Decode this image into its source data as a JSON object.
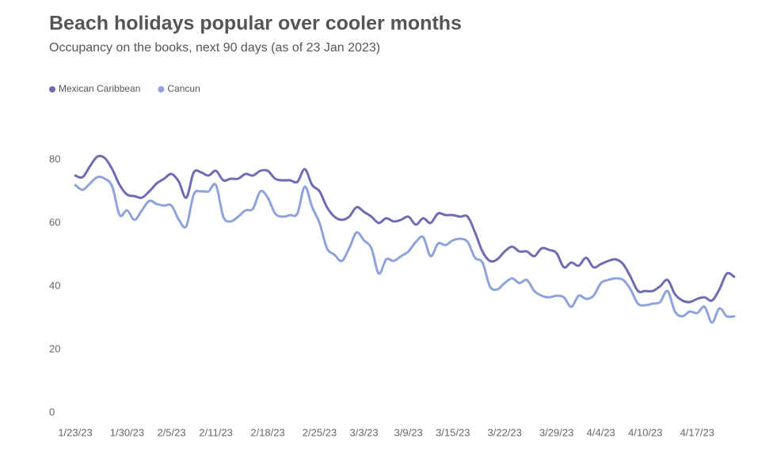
{
  "chart_data": {
    "type": "line",
    "title": "Beach holidays popular over cooler months",
    "subtitle": "Occupancy on the books, next 90 days (as of 23 Jan 2023)",
    "x": [
      "1/23/23",
      "1/24/23",
      "1/25/23",
      "1/26/23",
      "1/27/23",
      "1/28/23",
      "1/29/23",
      "1/30/23",
      "1/31/23",
      "2/1/23",
      "2/2/23",
      "2/3/23",
      "2/4/23",
      "2/5/23",
      "2/6/23",
      "2/7/23",
      "2/8/23",
      "2/9/23",
      "2/10/23",
      "2/11/23",
      "2/12/23",
      "2/13/23",
      "2/14/23",
      "2/15/23",
      "2/16/23",
      "2/17/23",
      "2/18/23",
      "2/19/23",
      "2/20/23",
      "2/21/23",
      "2/22/23",
      "2/23/23",
      "2/24/23",
      "2/25/23",
      "2/26/23",
      "2/27/23",
      "2/28/23",
      "3/1/23",
      "3/2/23",
      "3/3/23",
      "3/4/23",
      "3/5/23",
      "3/6/23",
      "3/7/23",
      "3/8/23",
      "3/9/23",
      "3/10/23",
      "3/11/23",
      "3/12/23",
      "3/13/23",
      "3/14/23",
      "3/15/23",
      "3/16/23",
      "3/17/23",
      "3/18/23",
      "3/19/23",
      "3/20/23",
      "3/21/23",
      "3/22/23",
      "3/23/23",
      "3/24/23",
      "3/25/23",
      "3/26/23",
      "3/27/23",
      "3/28/23",
      "3/29/23",
      "3/30/23",
      "3/31/23",
      "4/1/23",
      "4/2/23",
      "4/3/23",
      "4/4/23",
      "4/5/23",
      "4/6/23",
      "4/7/23",
      "4/8/23",
      "4/9/23",
      "4/10/23",
      "4/11/23",
      "4/12/23",
      "4/13/23",
      "4/14/23",
      "4/15/23",
      "4/16/23",
      "4/17/23",
      "4/18/23",
      "4/19/23",
      "4/20/23",
      "4/21/23",
      "4/22/23"
    ],
    "xticks": [
      "1/23/23",
      "1/30/23",
      "2/5/23",
      "2/11/23",
      "2/18/23",
      "2/25/23",
      "3/3/23",
      "3/9/23",
      "3/15/23",
      "3/22/23",
      "3/29/23",
      "4/4/23",
      "4/10/23",
      "4/17/23"
    ],
    "series": [
      {
        "name": "Mexican Caribbean",
        "color": "#6e6cb0",
        "values": [
          75,
          74.5,
          78,
          81,
          80.5,
          77,
          72,
          69,
          68.5,
          68,
          70,
          72.5,
          74,
          75.5,
          73,
          68,
          76,
          76,
          75,
          76.5,
          73.5,
          74,
          74,
          75.5,
          75,
          76.5,
          76.5,
          74,
          73.5,
          73.5,
          73,
          77,
          72,
          70,
          65,
          62,
          61,
          62,
          65,
          63.5,
          62,
          60,
          61.5,
          60.5,
          61,
          62,
          59.5,
          61.5,
          60,
          63,
          62.5,
          62.5,
          62,
          62,
          57,
          51,
          48,
          48.5,
          51,
          52.5,
          51,
          51,
          49.5,
          52,
          51.5,
          50.5,
          46,
          47.5,
          46.5,
          49,
          46,
          47,
          48,
          48.5,
          47,
          43,
          38.5,
          38.5,
          38.5,
          40,
          42,
          37.5,
          35.5,
          35,
          36,
          36.5,
          35.5,
          39,
          44,
          43
        ]
      },
      {
        "name": "Cancun",
        "color": "#8ea3da",
        "values": [
          72,
          70.5,
          72.5,
          74.5,
          74,
          71.5,
          62.5,
          64,
          61,
          64,
          67,
          66,
          65.5,
          65.5,
          61,
          59,
          69,
          70,
          70,
          72,
          62,
          60.5,
          62,
          64,
          64.5,
          70,
          68,
          63,
          62,
          62.5,
          63,
          71.5,
          65,
          60,
          52,
          50,
          48,
          52,
          57,
          54.5,
          52,
          44,
          48.5,
          48,
          49.5,
          51,
          54,
          55.5,
          49.5,
          53.5,
          53,
          54.5,
          55,
          54,
          49,
          47.5,
          40,
          39,
          41,
          42.5,
          41,
          42,
          38.5,
          37,
          36.5,
          37,
          36.5,
          33.5,
          37,
          36,
          37,
          41,
          42,
          42.5,
          42,
          39,
          34.5,
          34,
          34.5,
          35,
          38.5,
          32,
          30.5,
          32,
          31.5,
          33.5,
          28.5,
          33,
          30.5,
          30.5
        ]
      }
    ],
    "ylim": [
      0,
      85
    ],
    "yticks": [
      0,
      20,
      40,
      60,
      80
    ],
    "grid": false,
    "legend": "top-left"
  }
}
